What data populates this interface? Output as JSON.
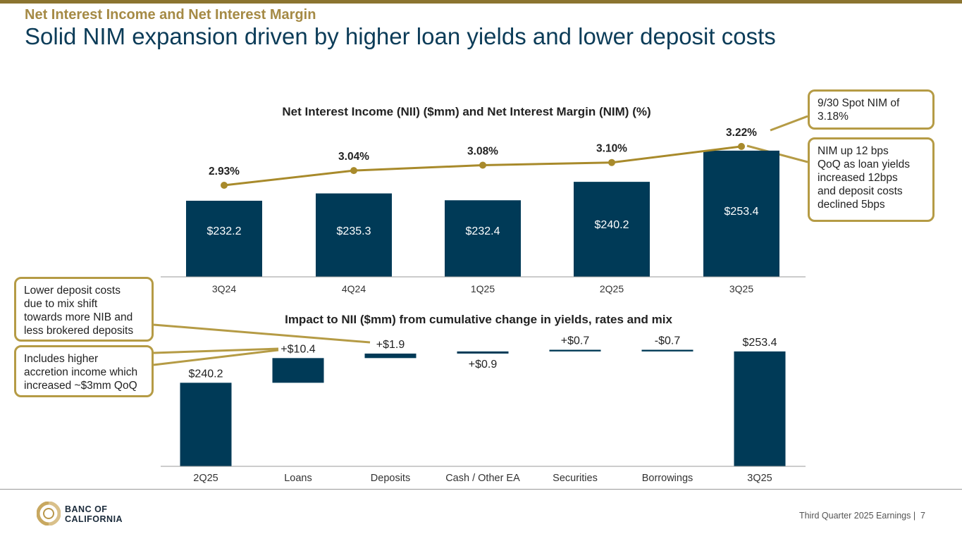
{
  "kicker": "Net Interest Income and Net Interest Margin",
  "headline": "Solid NIM expansion driven by higher loan yields and lower deposit costs",
  "colors": {
    "bar": "#003a57",
    "line": "#a88a2b",
    "accent": "#b59b45",
    "kicker": "#a58a45"
  },
  "chart_data": [
    {
      "type": "bar",
      "title": "Net Interest Income (NII) ($mm) and Net Interest Margin (NIM) (%)",
      "categories": [
        "3Q24",
        "4Q24",
        "1Q25",
        "2Q25",
        "3Q25"
      ],
      "series": [
        {
          "type": "bar",
          "values": [
            232.2,
            235.3,
            232.4,
            240.2,
            253.4
          ],
          "labels": [
            "$232.2",
            "$235.3",
            "$232.4",
            "$240.2",
            "$253.4"
          ]
        },
        {
          "type": "line",
          "values": [
            2.93,
            3.04,
            3.08,
            3.1,
            3.22
          ],
          "labels": [
            "2.93%",
            "3.04%",
            "3.08%",
            "3.10%",
            "3.22%"
          ]
        }
      ]
    },
    {
      "type": "bar",
      "title": "Impact to NII ($mm) from cumulative change in yields, rates and mix",
      "categories": [
        "2Q25",
        "Loans",
        "Deposits",
        "Cash / Other EA",
        "Securities",
        "Borrowings",
        "3Q25"
      ],
      "values": [
        240.2,
        10.4,
        1.9,
        0.9,
        0.7,
        -0.7,
        253.4
      ],
      "labels": [
        "$240.2",
        "+$10.4",
        "+$1.9",
        "+$0.9",
        "+$0.7",
        "-$0.7",
        "$253.4"
      ]
    }
  ],
  "callouts": {
    "spot_nim": [
      "9/30 Spot NIM of",
      "3.18%"
    ],
    "nim_up": [
      "NIM up 12 bps",
      "QoQ as loan yields",
      "increased 12bps",
      "and deposit costs",
      "declined 5bps"
    ],
    "deposit_costs": [
      "Lower deposit costs",
      "due to mix shift",
      "towards more NIB and",
      "less brokered deposits"
    ],
    "accretion": [
      "Includes higher",
      "accretion income which",
      "increased ~$3mm QoQ"
    ]
  },
  "logo": {
    "line1": "BANC OF",
    "line2": "CALIFORNIA"
  },
  "footer": {
    "text": "Third Quarter 2025 Earnings",
    "page": "7"
  }
}
